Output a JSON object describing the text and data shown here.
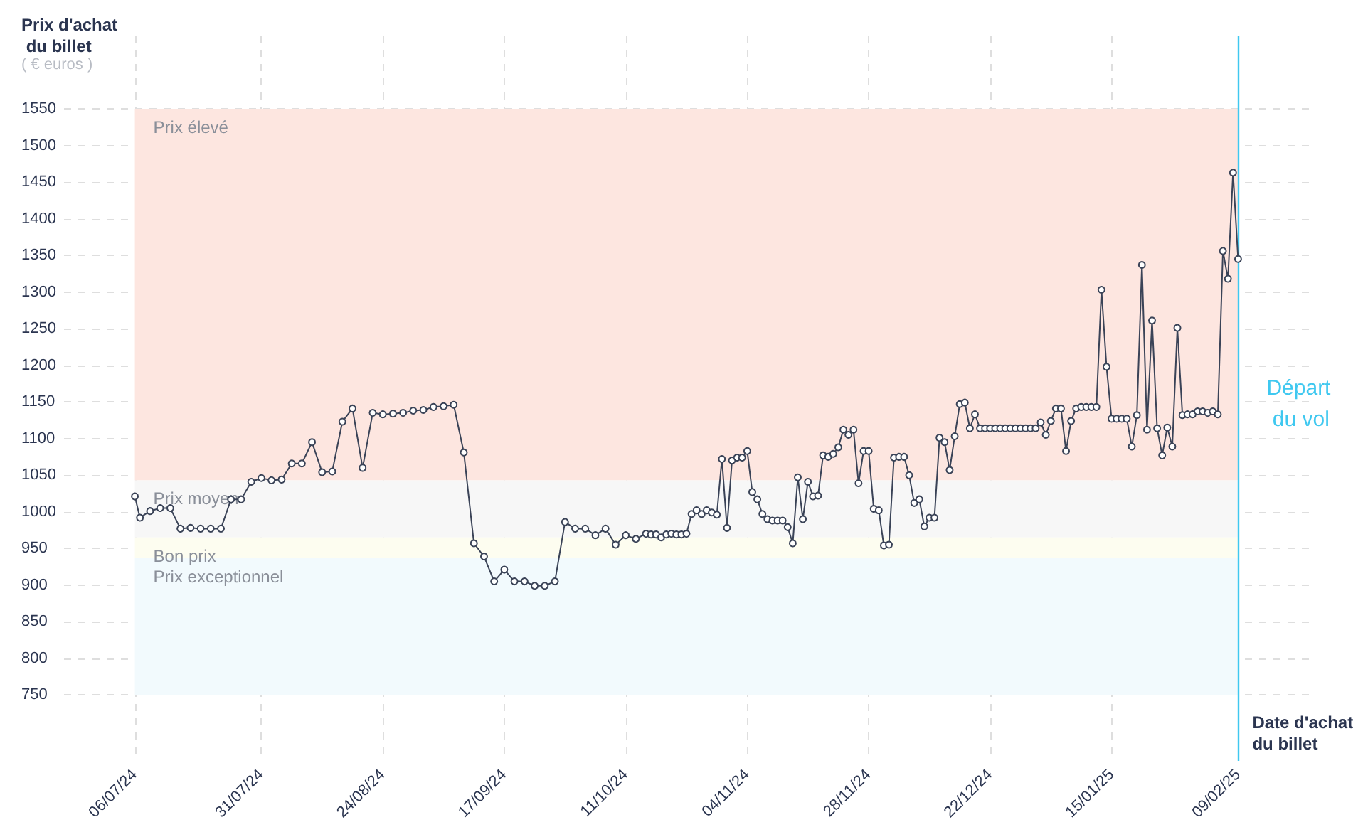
{
  "chart_data": {
    "type": "line",
    "ylabel": "Prix d'achat du billet",
    "xlabel": "Date d'achat du billet",
    "annotations": [
      "( € euros )"
    ],
    "series": [
      {
        "color": "#3a4357",
        "x": [
          "2024-07-06",
          "2024-07-07",
          "2024-07-09",
          "2024-07-11",
          "2024-07-13",
          "2024-07-15",
          "2024-07-17",
          "2024-07-19",
          "2024-07-21",
          "2024-07-23",
          "2024-07-25",
          "2024-07-27",
          "2024-07-29",
          "2024-07-31",
          "2024-08-02",
          "2024-08-04",
          "2024-08-06",
          "2024-08-08",
          "2024-08-10",
          "2024-08-12",
          "2024-08-14",
          "2024-08-16",
          "2024-08-18",
          "2024-08-20",
          "2024-08-22",
          "2024-08-24",
          "2024-08-26",
          "2024-08-28",
          "2024-08-30",
          "2024-09-01",
          "2024-09-03",
          "2024-09-05",
          "2024-09-07",
          "2024-09-09",
          "2024-09-11",
          "2024-09-13",
          "2024-09-15",
          "2024-09-17",
          "2024-09-19",
          "2024-09-21",
          "2024-09-23",
          "2024-09-25",
          "2024-09-27",
          "2024-09-29",
          "2024-10-01",
          "2024-10-03",
          "2024-10-05",
          "2024-10-07",
          "2024-10-09",
          "2024-10-11",
          "2024-10-13",
          "2024-10-15",
          "2024-10-16",
          "2024-10-17",
          "2024-10-18",
          "2024-10-19",
          "2024-10-20",
          "2024-10-21",
          "2024-10-22",
          "2024-10-23",
          "2024-10-24",
          "2024-10-25",
          "2024-10-26",
          "2024-10-27",
          "2024-10-28",
          "2024-10-29",
          "2024-10-30",
          "2024-10-31",
          "2024-11-01",
          "2024-11-02",
          "2024-11-03",
          "2024-11-04",
          "2024-11-05",
          "2024-11-06",
          "2024-11-07",
          "2024-11-08",
          "2024-11-09",
          "2024-11-10",
          "2024-11-11",
          "2024-11-12",
          "2024-11-13",
          "2024-11-14",
          "2024-11-15",
          "2024-11-16",
          "2024-11-17",
          "2024-11-18",
          "2024-11-19",
          "2024-11-20",
          "2024-11-21",
          "2024-11-22",
          "2024-11-23",
          "2024-11-24",
          "2024-11-25",
          "2024-11-26",
          "2024-11-27",
          "2024-11-28",
          "2024-11-29",
          "2024-11-30",
          "2024-12-01",
          "2024-12-02",
          "2024-12-03",
          "2024-12-04",
          "2024-12-05",
          "2024-12-06",
          "2024-12-07",
          "2024-12-08",
          "2024-12-09",
          "2024-12-10",
          "2024-12-11",
          "2024-12-12",
          "2024-12-13",
          "2024-12-14",
          "2024-12-15",
          "2024-12-16",
          "2024-12-17",
          "2024-12-18",
          "2024-12-19",
          "2024-12-20",
          "2024-12-21",
          "2024-12-22",
          "2024-12-23",
          "2024-12-24",
          "2024-12-25",
          "2024-12-26",
          "2024-12-27",
          "2024-12-28",
          "2024-12-29",
          "2024-12-30",
          "2024-12-31",
          "2025-01-01",
          "2025-01-02",
          "2025-01-03",
          "2025-01-04",
          "2025-01-05",
          "2025-01-06",
          "2025-01-07",
          "2025-01-08",
          "2025-01-09",
          "2025-01-10",
          "2025-01-11",
          "2025-01-12",
          "2025-01-13",
          "2025-01-14",
          "2025-01-15",
          "2025-01-16",
          "2025-01-17",
          "2025-01-18",
          "2025-01-19",
          "2025-01-20",
          "2025-01-21",
          "2025-01-22",
          "2025-01-23",
          "2025-01-24",
          "2025-01-25",
          "2025-01-26",
          "2025-01-27",
          "2025-01-28",
          "2025-01-29",
          "2025-01-30",
          "2025-01-31",
          "2025-02-01",
          "2025-02-02",
          "2025-02-03",
          "2025-02-04",
          "2025-02-05",
          "2025-02-06",
          "2025-02-07",
          "2025-02-08",
          "2025-02-09"
        ],
        "values": [
          1021,
          992,
          1001,
          1005,
          1005,
          977,
          978,
          977,
          977,
          977,
          1017,
          1017,
          1041,
          1046,
          1043,
          1044,
          1066,
          1066,
          1095,
          1054,
          1055,
          1123,
          1141,
          1060,
          1135,
          1133,
          1134,
          1135,
          1138,
          1139,
          1143,
          1144,
          1146,
          1081,
          957,
          939,
          905,
          921,
          905,
          905,
          899,
          899,
          905,
          986,
          977,
          977,
          968,
          977,
          955,
          968,
          963,
          970,
          969,
          969,
          965,
          969,
          970,
          969,
          969,
          970,
          997,
          1002,
          997,
          1002,
          999,
          996,
          1072,
          978,
          1070,
          1074,
          1074,
          1083,
          1027,
          1017,
          997,
          990,
          988,
          988,
          988,
          979,
          957,
          1047,
          990,
          1041,
          1021,
          1022,
          1077,
          1075,
          1079,
          1088,
          1112,
          1105,
          1112,
          1039,
          1083,
          1083,
          1004,
          1002,
          954,
          955,
          1074,
          1075,
          1075,
          1050,
          1012,
          1017,
          980,
          992,
          992,
          1101,
          1095,
          1057,
          1103,
          1147,
          1149,
          1114,
          1133,
          1114,
          1114,
          1114,
          1114,
          1114,
          1114,
          1114,
          1114,
          1114,
          1114,
          1114,
          1114,
          1122,
          1105,
          1124,
          1141,
          1141,
          1083,
          1124,
          1141,
          1143,
          1143,
          1143,
          1143,
          1303,
          1198,
          1127,
          1127,
          1127,
          1127,
          1089,
          1132,
          1337,
          1112,
          1261,
          1114,
          1077,
          1115,
          1089,
          1251,
          1132,
          1133,
          1133,
          1137,
          1137,
          1135,
          1137,
          1133,
          1356,
          1318,
          1463,
          1345
        ]
      }
    ],
    "xlim": [
      "2024-06-22",
      "2025-02-23"
    ],
    "xticks": [
      {
        "value": "2024-07-06",
        "label": "06/07/24"
      },
      {
        "value": "2024-07-31",
        "label": "31/07/24"
      },
      {
        "value": "2024-08-24",
        "label": "24/08/24"
      },
      {
        "value": "2024-09-17",
        "label": "17/09/24"
      },
      {
        "value": "2024-10-11",
        "label": "11/10/24"
      },
      {
        "value": "2024-11-04",
        "label": "04/11/24"
      },
      {
        "value": "2024-11-28",
        "label": "28/11/24"
      },
      {
        "value": "2024-12-22",
        "label": "22/12/24"
      },
      {
        "value": "2025-01-15",
        "label": "15/01/25"
      },
      {
        "value": "2025-02-09",
        "label": "09/02/25"
      }
    ],
    "ylim": [
      660,
      1650
    ],
    "yticks": [
      750,
      800,
      850,
      900,
      950,
      1000,
      1050,
      1100,
      1150,
      1200,
      1250,
      1300,
      1350,
      1400,
      1450,
      1500,
      1550
    ],
    "bands": [
      {
        "axis": "y",
        "from": 1043,
        "to": 1550,
        "label": "Prix élevé",
        "color": "#fde6e0"
      },
      {
        "axis": "y",
        "from": 965,
        "to": 1043,
        "label": "Prix moyen",
        "color": "#f7f7f7"
      },
      {
        "axis": "y",
        "from": 937,
        "to": 965,
        "label": "Bon prix",
        "color": "#fdfdf0"
      },
      {
        "axis": "y",
        "from": 750,
        "to": 937,
        "label": "Prix exceptionnel",
        "color": "#f2fafd"
      }
    ],
    "ref_lines": [
      {
        "axis": "x",
        "value": "2025-02-09",
        "label": "Départ du vol",
        "color": "#3fc8f0",
        "line_style": "solid"
      }
    ],
    "grid": true,
    "marker": "circle",
    "line_style": "solid"
  }
}
